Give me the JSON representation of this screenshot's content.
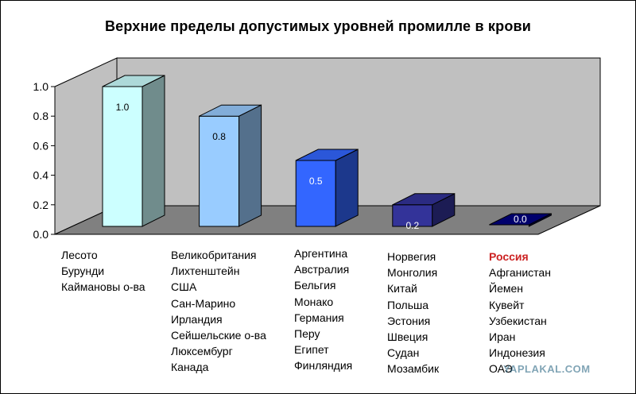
{
  "chart_data": {
    "type": "bar",
    "title": "Верхние пределы допустимых уровней промилле в крови",
    "ylim": [
      0,
      1.0
    ],
    "yticks": [
      "1.0",
      "0.8",
      "0.6",
      "0.4",
      "0.2",
      "0.0"
    ],
    "grid": false,
    "three_d": true,
    "values": [
      1.0,
      0.8,
      0.5,
      0.2,
      0.0
    ],
    "value_labels": [
      "1.0",
      "0.8",
      "0.5",
      "0.2",
      "0.0"
    ],
    "bar_colors": [
      "#ccffff",
      "#99ccff",
      "#3366ff",
      "#333399",
      "#000080"
    ],
    "categories": [
      [
        "Лесото",
        "Бурунди",
        "Каймановы о-ва"
      ],
      [
        "Великобритания",
        "Лихтенштейн",
        "США",
        "Сан-Марино",
        "Ирландия",
        "Сейшельские о-ва",
        "Люксембург",
        "Канада"
      ],
      [
        "Аргентина",
        "Австралия",
        "Бельгия",
        "Монако",
        "Германия",
        "Перу",
        "Египет",
        "Финляндия"
      ],
      [
        "Норвегия",
        "Монголия",
        "Китай",
        "Польша",
        "Эстония",
        "Швеция",
        "Судан",
        "Мозамбик"
      ],
      [
        "Россия",
        "Афганистан",
        "Йемен",
        "Кувейт",
        "Узбекистан",
        "Иран",
        "Индонезия",
        "ОАЭ"
      ]
    ],
    "highlight": "Россия",
    "highlight_color": "#cc2222"
  },
  "watermark": "YAPLAKAL.COM"
}
